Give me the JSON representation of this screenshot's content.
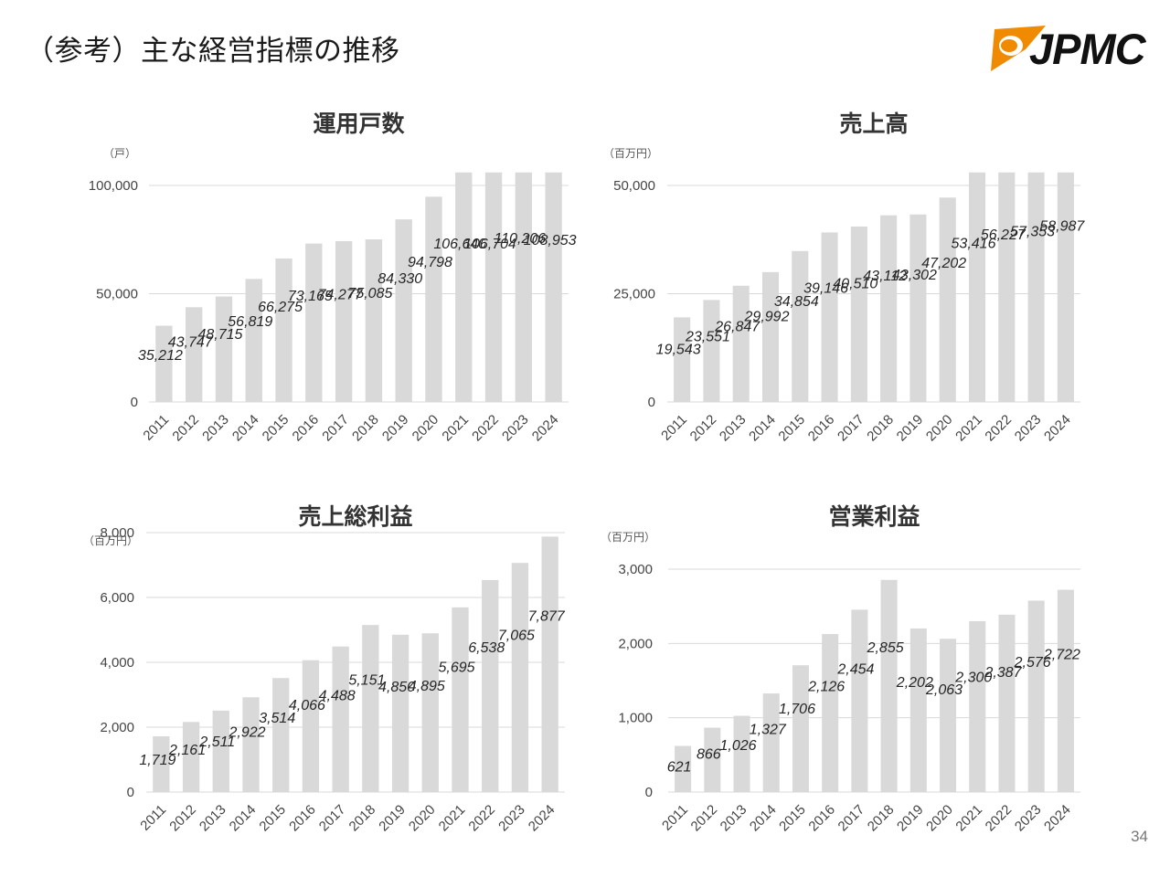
{
  "header": {
    "title": "（参考）主な経営指標の推移",
    "logo_text": "JPMC"
  },
  "page_number": "34",
  "colors": {
    "bar": "#d9d9d9",
    "grid": "#d9d9d9",
    "logo_orange": "#f08a00"
  },
  "chart_data": [
    {
      "type": "bar",
      "title": "運用戸数",
      "unit": "（戸）",
      "categories": [
        "2011",
        "2012",
        "2013",
        "2014",
        "2015",
        "2016",
        "2017",
        "2018",
        "2019",
        "2020",
        "2021",
        "2022",
        "2023",
        "2024"
      ],
      "values": [
        35212,
        43747,
        48715,
        56819,
        66275,
        73165,
        74277,
        75085,
        84330,
        94798,
        106640,
        106704,
        110206,
        108953
      ],
      "value_labels": [
        "35,212",
        "43,747",
        "48,715",
        "56,819",
        "66,275",
        "73,165",
        "74,277",
        "75,085",
        "84,330",
        "94,798",
        "106,640",
        "106,704",
        "110,206",
        "108,953"
      ],
      "yticks": [
        "0",
        "50,000",
        "100,000"
      ],
      "ylim": [
        0,
        100000
      ],
      "grid": true
    },
    {
      "type": "bar",
      "title": "売上高",
      "unit": "（百万円）",
      "categories": [
        "2011",
        "2012",
        "2013",
        "2014",
        "2015",
        "2016",
        "2017",
        "2018",
        "2019",
        "2020",
        "2021",
        "2022",
        "2023",
        "2024"
      ],
      "values": [
        19543,
        23551,
        26847,
        29992,
        34854,
        39146,
        40510,
        43112,
        43302,
        47202,
        53416,
        56227,
        57353,
        58987
      ],
      "value_labels": [
        "19,543",
        "23,551",
        "26,847",
        "29,992",
        "34,854",
        "39,146",
        "40,510",
        "43,112",
        "43,302",
        "47,202",
        "53,416",
        "56,227",
        "57,353",
        "58,987"
      ],
      "yticks": [
        "0",
        "25,000",
        "50,000"
      ],
      "ylim": [
        0,
        50000
      ],
      "grid": true
    },
    {
      "type": "bar",
      "title": "売上総利益",
      "unit": "（百万円）",
      "categories": [
        "2011",
        "2012",
        "2013",
        "2014",
        "2015",
        "2016",
        "2017",
        "2018",
        "2019",
        "2020",
        "2021",
        "2022",
        "2023",
        "2024"
      ],
      "values": [
        1719,
        2161,
        2511,
        2922,
        3514,
        4066,
        4488,
        5151,
        4850,
        4895,
        5695,
        6538,
        7065,
        7877
      ],
      "value_labels": [
        "1,719",
        "2,161",
        "2,511",
        "2,922",
        "3,514",
        "4,066",
        "4,488",
        "5,151",
        "4,850",
        "4,895",
        "5,695",
        "6,538",
        "7,065",
        "7,877"
      ],
      "yticks": [
        "0",
        "2,000",
        "4,000",
        "6,000",
        "8,000"
      ],
      "ylim": [
        0,
        8000
      ],
      "grid": true
    },
    {
      "type": "bar",
      "title": "営業利益",
      "unit": "（百万円）",
      "categories": [
        "2011",
        "2012",
        "2013",
        "2014",
        "2015",
        "2016",
        "2017",
        "2018",
        "2019",
        "2020",
        "2021",
        "2022",
        "2023",
        "2024"
      ],
      "values": [
        621,
        866,
        1026,
        1327,
        1706,
        2126,
        2454,
        2855,
        2202,
        2063,
        2300,
        2387,
        2576,
        2722
      ],
      "value_labels": [
        "621",
        "866",
        "1,026",
        "1,327",
        "1,706",
        "2,126",
        "2,454",
        "2,855",
        "2,202",
        "2,063",
        "2,300",
        "2,387",
        "2,576",
        "2,722"
      ],
      "yticks": [
        "0",
        "1,000",
        "2,000",
        "3,000"
      ],
      "ylim": [
        0,
        3000
      ],
      "grid": true
    }
  ]
}
